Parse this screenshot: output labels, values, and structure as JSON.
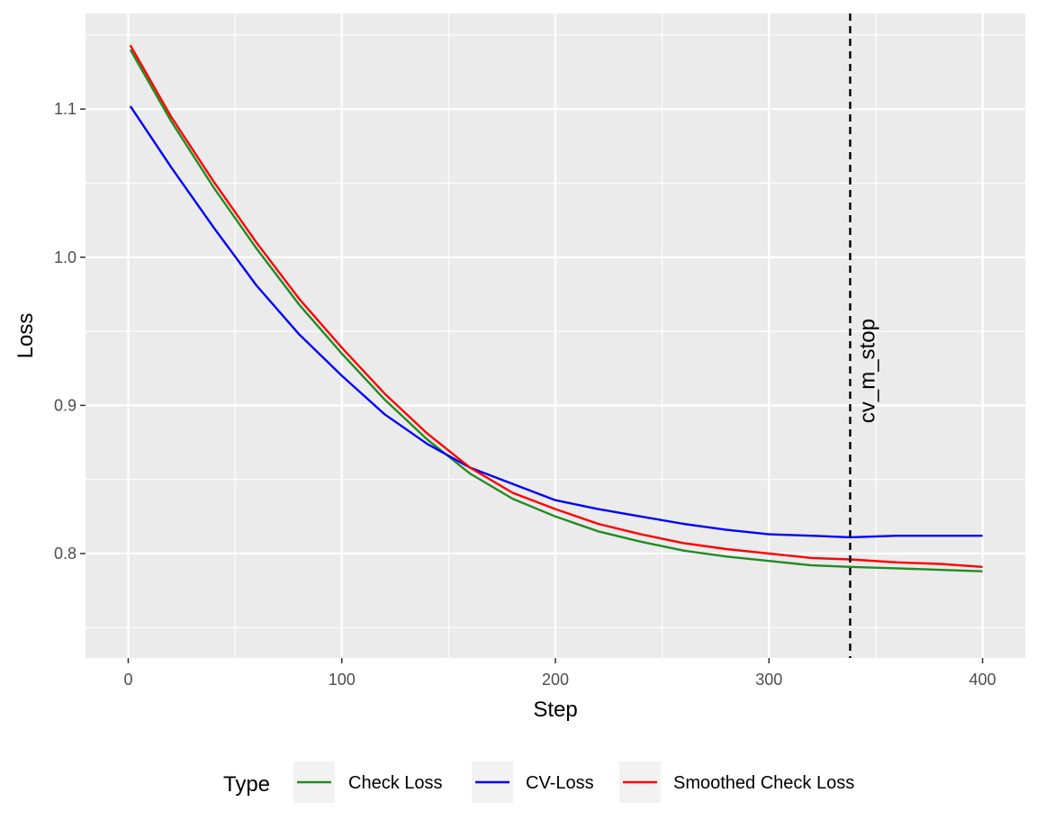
{
  "chart_data": {
    "type": "line",
    "title": "",
    "xlabel": "Step",
    "ylabel": "Loss",
    "xlim": [
      -20,
      420
    ],
    "ylim": [
      0.7295,
      1.1645
    ],
    "x_ticks": [
      0,
      100,
      200,
      300,
      400
    ],
    "y_ticks": [
      0.8,
      0.9,
      1.0,
      1.1
    ],
    "x_tick_labels": [
      "0",
      "100",
      "200",
      "300",
      "400"
    ],
    "y_tick_labels": [
      "0.8",
      "0.9",
      "1.0",
      "1.1"
    ],
    "grid": true,
    "legend": {
      "title": "Type",
      "position": "bottom",
      "entries": [
        "Check Loss",
        "CV-Loss",
        "Smoothed Check Loss"
      ]
    },
    "x": [
      1,
      20,
      40,
      60,
      80,
      100,
      120,
      140,
      160,
      180,
      200,
      220,
      240,
      260,
      280,
      300,
      320,
      338,
      360,
      380,
      400
    ],
    "series": [
      {
        "name": "Check Loss",
        "color": "#228b22",
        "values": [
          1.14,
          1.092,
          1.047,
          1.006,
          0.968,
          0.935,
          0.904,
          0.877,
          0.854,
          0.837,
          0.825,
          0.815,
          0.808,
          0.802,
          0.798,
          0.795,
          0.792,
          0.791,
          0.79,
          0.789,
          0.788
        ]
      },
      {
        "name": "CV-Loss",
        "color": "#0000ff",
        "values": [
          1.102,
          1.061,
          1.02,
          0.981,
          0.948,
          0.92,
          0.894,
          0.874,
          0.858,
          0.847,
          0.836,
          0.83,
          0.825,
          0.82,
          0.816,
          0.813,
          0.812,
          0.811,
          0.812,
          0.812,
          0.812
        ]
      },
      {
        "name": "Smoothed Check Loss",
        "color": "#ff0000",
        "values": [
          1.143,
          1.095,
          1.051,
          1.01,
          0.972,
          0.939,
          0.908,
          0.881,
          0.858,
          0.841,
          0.83,
          0.82,
          0.813,
          0.807,
          0.803,
          0.8,
          0.797,
          0.796,
          0.794,
          0.793,
          0.791
        ]
      }
    ],
    "vline": {
      "x": 338,
      "label": "cv_m_stop",
      "style": "dashed",
      "color": "#000000"
    }
  }
}
